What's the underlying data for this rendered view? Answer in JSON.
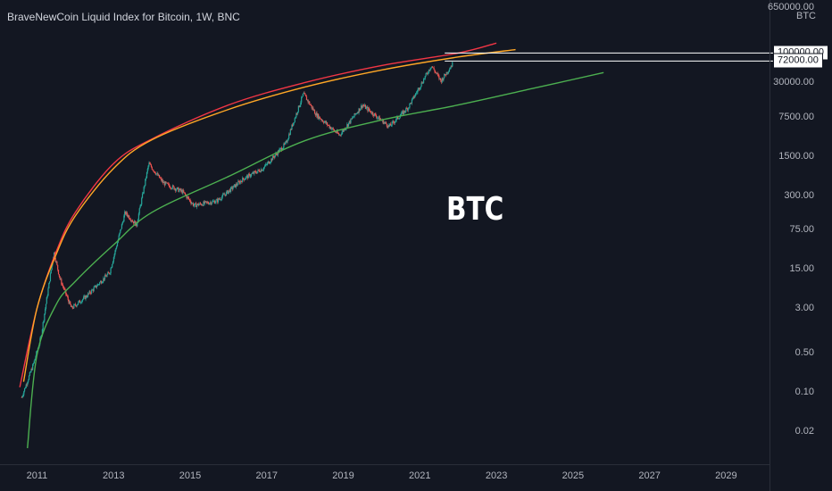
{
  "chart_title": "BraveNewCoin Liquid Index for Bitcoin, 1W, BNC",
  "watermark": "BTC",
  "colors": {
    "background": "#131722",
    "up_candle": "#26a69a",
    "down_candle": "#ef5350",
    "red_curve": "#f23645",
    "orange_curve": "#ffa726",
    "green_curve": "#4caf50",
    "level_line": "#ffffff"
  },
  "chart_data": {
    "type": "line",
    "title": "BraveNewCoin Liquid Index for Bitcoin, 1W, BNC",
    "y_scale": "log",
    "y_unit": "BTC",
    "ylim": [
      0.01,
      650000
    ],
    "xlim": [
      2010.5,
      2029.9
    ],
    "x_ticks": [
      "2011",
      "2013",
      "2015",
      "2017",
      "2019",
      "2021",
      "2023",
      "2025",
      "2027",
      "2029"
    ],
    "y_ticks": [
      "650000.00",
      "30000.00",
      "7500.00",
      "1500.00",
      "300.00",
      "75.00",
      "15.00",
      "3.00",
      "0.50",
      "0.10",
      "0.02"
    ],
    "price_levels": [
      "100000.00",
      "72000.00"
    ],
    "price_series": [
      {
        "x": 2010.6,
        "y": 0.08
      },
      {
        "x": 2010.9,
        "y": 0.3
      },
      {
        "x": 2011.1,
        "y": 0.9
      },
      {
        "x": 2011.44,
        "y": 30
      },
      {
        "x": 2011.6,
        "y": 10
      },
      {
        "x": 2011.9,
        "y": 3
      },
      {
        "x": 2012.3,
        "y": 5
      },
      {
        "x": 2012.9,
        "y": 13
      },
      {
        "x": 2013.3,
        "y": 150
      },
      {
        "x": 2013.6,
        "y": 90
      },
      {
        "x": 2013.92,
        "y": 1100
      },
      {
        "x": 2014.3,
        "y": 500
      },
      {
        "x": 2014.8,
        "y": 350
      },
      {
        "x": 2015.1,
        "y": 200
      },
      {
        "x": 2015.7,
        "y": 240
      },
      {
        "x": 2016.4,
        "y": 600
      },
      {
        "x": 2016.9,
        "y": 900
      },
      {
        "x": 2017.5,
        "y": 2500
      },
      {
        "x": 2017.96,
        "y": 19000
      },
      {
        "x": 2018.3,
        "y": 8000
      },
      {
        "x": 2018.9,
        "y": 3500
      },
      {
        "x": 2019.5,
        "y": 12000
      },
      {
        "x": 2020.2,
        "y": 5000
      },
      {
        "x": 2020.7,
        "y": 11000
      },
      {
        "x": 2021.3,
        "y": 60000
      },
      {
        "x": 2021.55,
        "y": 32000
      },
      {
        "x": 2021.85,
        "y": 64000
      }
    ],
    "series": [
      {
        "color": "#f23645",
        "points": [
          [
            2010.55,
            0.12
          ],
          [
            2011.0,
            3
          ],
          [
            2011.5,
            30
          ],
          [
            2012,
            150
          ],
          [
            2013,
            1100
          ],
          [
            2014,
            3000
          ],
          [
            2016,
            12000
          ],
          [
            2018,
            30000
          ],
          [
            2020,
            60000
          ],
          [
            2022,
            100000
          ],
          [
            2023.0,
            150000
          ]
        ]
      },
      {
        "color": "#ffa726",
        "points": [
          [
            2010.65,
            0.15
          ],
          [
            2011.0,
            3
          ],
          [
            2011.5,
            27
          ],
          [
            2012,
            130
          ],
          [
            2013,
            900
          ],
          [
            2014,
            2900
          ],
          [
            2016,
            10000
          ],
          [
            2018,
            25000
          ],
          [
            2020,
            50000
          ],
          [
            2022,
            85000
          ],
          [
            2023.5,
            115000
          ]
        ]
      },
      {
        "color": "#4caf50",
        "points": [
          [
            2010.75,
            0.01
          ],
          [
            2011.0,
            0.45
          ],
          [
            2011.5,
            3.5
          ],
          [
            2012,
            9
          ],
          [
            2013,
            40
          ],
          [
            2014,
            150
          ],
          [
            2016,
            650
          ],
          [
            2018,
            2800
          ],
          [
            2020,
            6500
          ],
          [
            2022,
            12000
          ],
          [
            2024,
            24000
          ],
          [
            2025.8,
            45000
          ]
        ]
      }
    ]
  }
}
